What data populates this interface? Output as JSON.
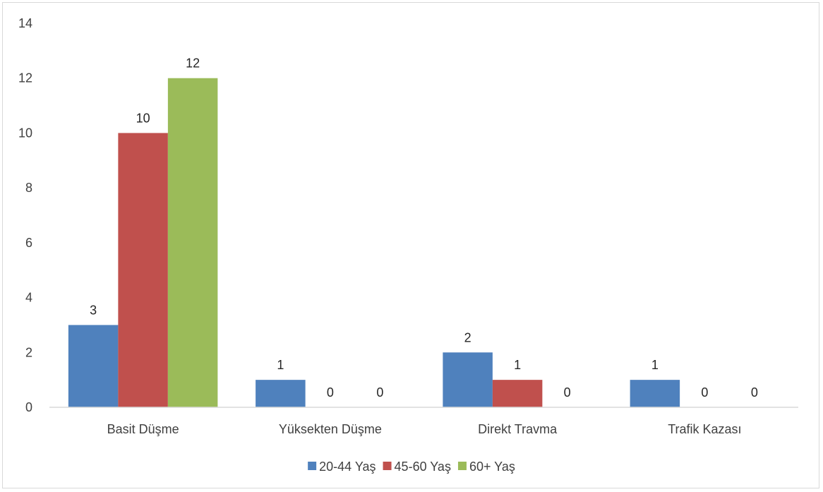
{
  "chart_data": {
    "type": "bar",
    "categories": [
      "Basit Düşme",
      "Yüksekten Düşme",
      "Direkt Travma",
      "Trafik Kazası"
    ],
    "series": [
      {
        "name": "20-44 Yaş",
        "color": "#4f81bd",
        "values": [
          3,
          1,
          2,
          1
        ]
      },
      {
        "name": "45-60 Yaş",
        "color": "#c0504d",
        "values": [
          10,
          0,
          1,
          0
        ]
      },
      {
        "name": "60+ Yaş",
        "color": "#9bbb59",
        "values": [
          12,
          0,
          0,
          0
        ]
      }
    ],
    "ylim": [
      0,
      14
    ],
    "yticks": [
      0,
      2,
      4,
      6,
      8,
      10,
      12,
      14
    ],
    "grid": false,
    "data_labels": true,
    "legend_position": "bottom"
  }
}
